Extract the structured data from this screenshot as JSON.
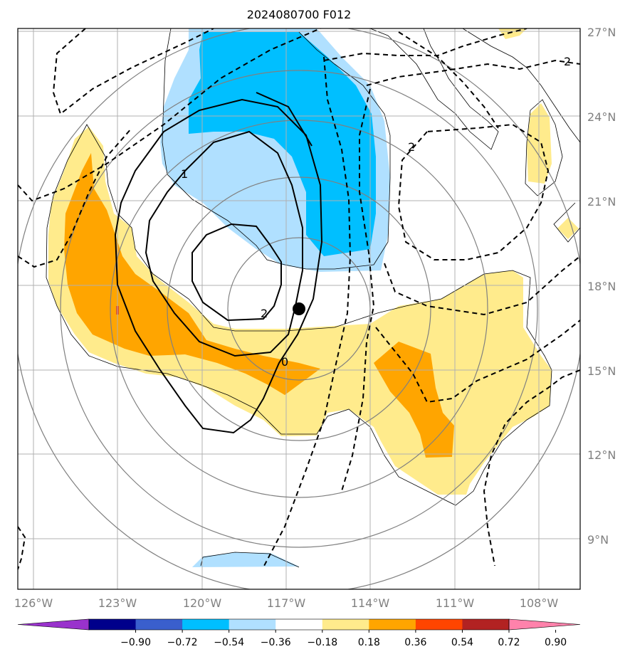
{
  "title": "2024080700 F012",
  "latitude_labels": [
    "27°N",
    "24°N",
    "21°N",
    "18°N",
    "15°N",
    "12°N",
    "9°N"
  ],
  "longitude_labels": [
    "126°W",
    "123°W",
    "120°W",
    "117°W",
    "114°W",
    "111°W",
    "108°W"
  ],
  "colorbar": {
    "tick_labels": [
      "−0.90",
      "−0.72",
      "−0.54",
      "−0.36",
      "−0.18",
      "0.18",
      "0.36",
      "0.54",
      "0.72",
      "0.90"
    ],
    "colors": [
      "#9932cc",
      "#00008b",
      "#3a5fcd",
      "#00bfff",
      "#b0e0ff",
      "#ffffff",
      "#ffeb8c",
      "#ffa500",
      "#ff4500",
      "#b22222",
      "#ff82ab"
    ]
  },
  "contour_labels": {
    "solid_minus_1": "1",
    "solid_minus_2": "2",
    "solid_zero": "0",
    "dashed_2_east": "2",
    "dashed_2_northeast": "2"
  },
  "marker": "storm-center",
  "colors": {
    "light_blue": "#b0e0ff",
    "blue": "#00bfff",
    "light_yellow": "#ffeb8c",
    "orange": "#ffa500",
    "grid": "#b0b0b0",
    "range_rings": "#808080"
  }
}
